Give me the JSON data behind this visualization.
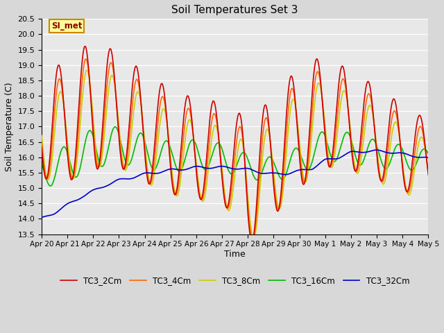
{
  "title": "Soil Temperatures Set 3",
  "xlabel": "Time",
  "ylabel": "Soil Temperature (C)",
  "ylim": [
    13.5,
    20.5
  ],
  "xlim": [
    0,
    15
  ],
  "series_colors": {
    "TC3_2Cm": "#cc0000",
    "TC3_4Cm": "#ff6600",
    "TC3_8Cm": "#cccc00",
    "TC3_16Cm": "#00bb00",
    "TC3_32Cm": "#0000cc"
  },
  "xtick_labels": [
    "Apr 20",
    "Apr 21",
    "Apr 22",
    "Apr 23",
    "Apr 24",
    "Apr 25",
    "Apr 26",
    "Apr 27",
    "Apr 28",
    "Apr 29",
    "Apr 30",
    "May 1",
    "May 2",
    "May 3",
    "May 4",
    "May 5"
  ],
  "ytick_values": [
    13.5,
    14.0,
    14.5,
    15.0,
    15.5,
    16.0,
    16.5,
    17.0,
    17.5,
    18.0,
    18.5,
    19.0,
    19.5,
    20.0,
    20.5
  ],
  "fig_bg_color": "#d8d8d8",
  "plot_bg_color": "#e8e8e8",
  "grid_color": "#ffffff",
  "annotation_text": "SI_met",
  "annotation_bg": "#ffff99",
  "annotation_border": "#cc8800",
  "legend_labels": [
    "TC3_2Cm",
    "TC3_4Cm",
    "TC3_8Cm",
    "TC3_16Cm",
    "TC3_32Cm"
  ],
  "line_width": 1.2
}
